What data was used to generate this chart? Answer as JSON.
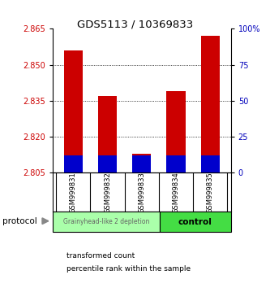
{
  "title": "GDS5113 / 10369833",
  "samples": [
    "GSM999831",
    "GSM999832",
    "GSM999833",
    "GSM999834",
    "GSM999835"
  ],
  "transformed_counts": [
    2.856,
    2.837,
    2.813,
    2.839,
    2.862
  ],
  "percentile_ranks": [
    12,
    12,
    12,
    12,
    12
  ],
  "bar_base": 2.805,
  "ylim_left": [
    2.805,
    2.865
  ],
  "ylim_right": [
    0,
    100
  ],
  "yticks_left": [
    2.805,
    2.82,
    2.835,
    2.85,
    2.865
  ],
  "yticks_right": [
    0,
    25,
    50,
    75,
    100
  ],
  "ytick_labels_right": [
    "0",
    "25",
    "50",
    "75",
    "100%"
  ],
  "group_labels": [
    "Grainyhead-like 2 depletion",
    "control"
  ],
  "group_colors": [
    "#aaffaa",
    "#44dd44"
  ],
  "bar_color_red": "#cc0000",
  "bar_color_blue": "#0000cc",
  "bg_color": "#ffffff",
  "tick_label_color_left": "#cc0000",
  "tick_label_color_right": "#0000bb",
  "protocol_label": "protocol",
  "sample_box_color": "#cccccc",
  "bar_width": 0.55
}
